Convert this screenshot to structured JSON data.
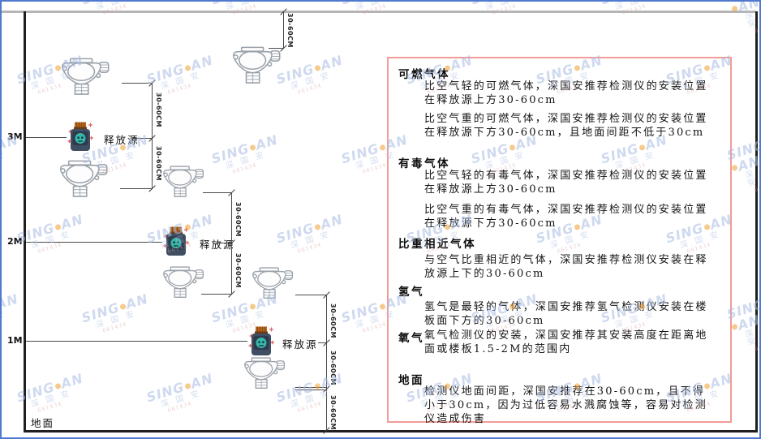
{
  "watermark": {
    "brand_prefix": "SING",
    "brand_suffix": "AN",
    "cn": "深 国 安",
    "code": "661434",
    "dot_color": "#f0a030",
    "text_color": "#a8bbe2",
    "code_color": "#dca4a4"
  },
  "diagram": {
    "ground_label": "地面",
    "level_labels": [
      "3M",
      "2M",
      "1M"
    ],
    "release_source_label": "释放源",
    "dim_label": "30-60CM",
    "colors": {
      "wall": "#1f1f1f",
      "ceiling": "#b5b5b5",
      "dimension": "#4a4a4a",
      "panel_border": "#f29b97",
      "source_body": "#3f4e63",
      "source_cap": "#b5651d",
      "source_emblem": "#36b7a8",
      "detector_stroke": "#9aa1a9"
    }
  },
  "panel": {
    "sections": [
      {
        "heading": "可燃气体",
        "paras": [
          "比空气轻的可燃气体，深国安推荐检测仪的安装位置在释放源上方30-60cm",
          "比空气重的可燃气体，深国安推荐检测仪的安装位置在释放源下方30-60cm，且地面间距不低于30cm"
        ]
      },
      {
        "heading": "有毒气体",
        "paras": [
          "比空气轻的有毒气体，深国安推荐检测仪的安装位置在释放源上方30-60cm",
          "比空气重的有毒气体，深国安推荐检测仪的安装位置在释放源下方30-60cm"
        ]
      },
      {
        "heading": "比重相近气体",
        "paras": [
          "与空气比重相近的气体，深国安推荐检测仪安装在释放源上下的30-60cm"
        ]
      },
      {
        "heading": "氢气",
        "paras": [
          "氢气是最轻的气体，深国安推荐氢气检测仪安装在楼板面下方的30-60cm"
        ]
      },
      {
        "heading": "氧气",
        "inline": true,
        "paras": [
          "氧气检测仪的安装，深国安推荐其安装高度在距离地面或楼板1.5-2M的范围内"
        ]
      },
      {
        "heading": "地面",
        "paras": [
          "检测仪地面间距，深国安推荐在30-60cm，且不得小于30cm，因为过低容易水溅腐蚀等，容易对检测仪造成伤害"
        ]
      }
    ]
  }
}
